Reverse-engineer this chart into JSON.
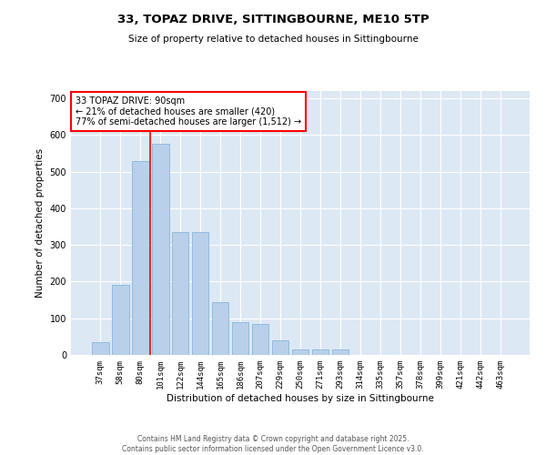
{
  "title1": "33, TOPAZ DRIVE, SITTINGBOURNE, ME10 5TP",
  "title2": "Size of property relative to detached houses in Sittingbourne",
  "xlabel": "Distribution of detached houses by size in Sittingbourne",
  "ylabel": "Number of detached properties",
  "categories": [
    "37sqm",
    "58sqm",
    "80sqm",
    "101sqm",
    "122sqm",
    "144sqm",
    "165sqm",
    "186sqm",
    "207sqm",
    "229sqm",
    "250sqm",
    "271sqm",
    "293sqm",
    "314sqm",
    "335sqm",
    "357sqm",
    "378sqm",
    "399sqm",
    "421sqm",
    "442sqm",
    "463sqm"
  ],
  "values": [
    35,
    190,
    530,
    575,
    335,
    335,
    145,
    90,
    85,
    40,
    15,
    15,
    15,
    0,
    0,
    0,
    0,
    0,
    0,
    0,
    0
  ],
  "bar_color": "#b8d0ea",
  "bar_edge_color": "#7aafd4",
  "background_color": "#dde8f5",
  "annotation_text": "33 TOPAZ DRIVE: 90sqm\n← 21% of detached houses are smaller (420)\n77% of semi-detached houses are larger (1,512) →",
  "annotation_box_color": "white",
  "annotation_box_edge": "red",
  "red_line_x": 2.5,
  "ylim": [
    0,
    720
  ],
  "yticks": [
    0,
    100,
    200,
    300,
    400,
    500,
    600,
    700
  ],
  "footer1": "Contains HM Land Registry data © Crown copyright and database right 2025.",
  "footer2": "Contains public sector information licensed under the Open Government Licence v3.0."
}
